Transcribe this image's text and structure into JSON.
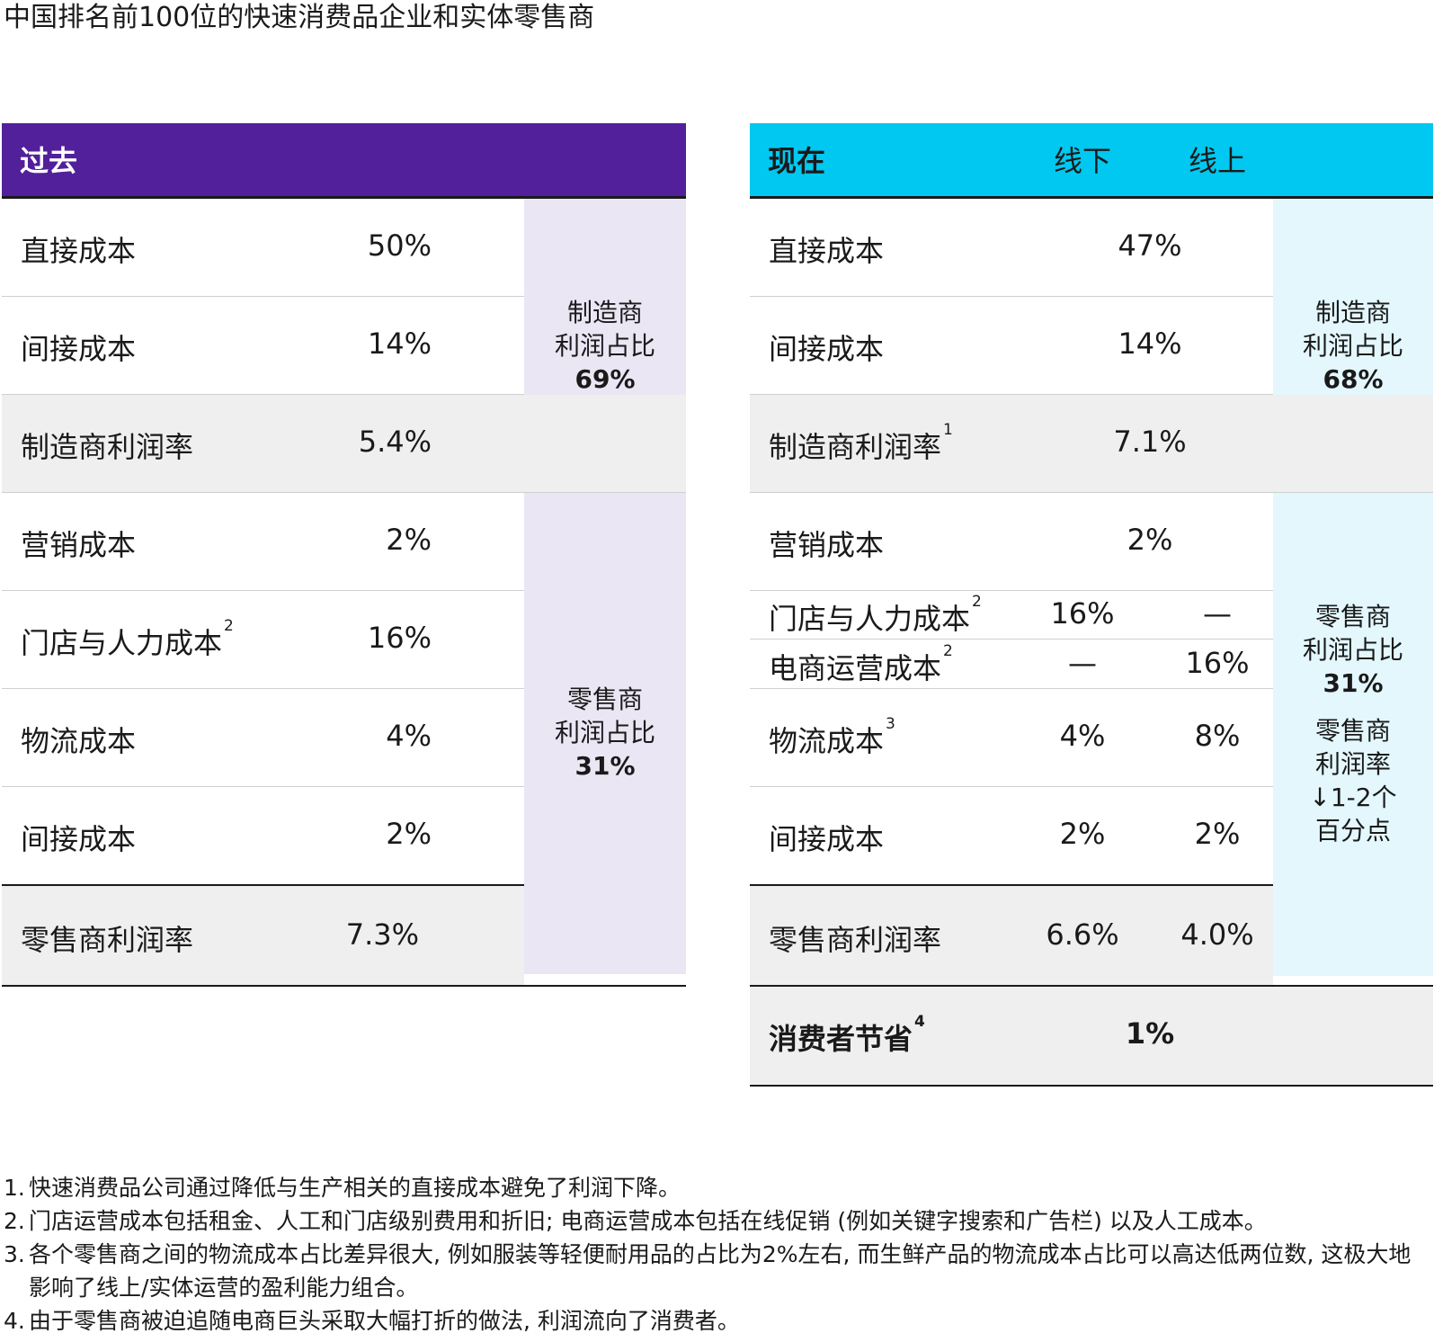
{
  "title": "中国排名前100位的快速消费品企业和实体零售商",
  "left": {
    "header": "过去",
    "rows": [
      {
        "label": "直接成本",
        "sup": "",
        "value": "50%"
      },
      {
        "label": "间接成本",
        "sup": "",
        "value": "14%"
      },
      {
        "label": "制造商利润率",
        "sup": "",
        "value": "5.4%"
      },
      {
        "label": "营销成本",
        "sup": "",
        "value": "2%"
      },
      {
        "label": "门店与人力成本",
        "sup": "2",
        "value": "16%"
      },
      {
        "label": "物流成本",
        "sup": "",
        "value": "4%"
      },
      {
        "label": "间接成本",
        "sup": "",
        "value": "2%"
      },
      {
        "label": "零售商利润率",
        "sup": "",
        "value": "7.3%"
      }
    ],
    "side_manufacturer": {
      "line1": "制造商",
      "line2": "利润占比",
      "pct": "69%"
    },
    "side_retailer": {
      "line1": "零售商",
      "line2": "利润占比",
      "pct": "31%"
    }
  },
  "right": {
    "header": "现在",
    "col_offline": "线下",
    "col_online": "线上",
    "rows": [
      {
        "label": "直接成本",
        "sup": "",
        "value": "47%"
      },
      {
        "label": "间接成本",
        "sup": "",
        "value": "14%"
      },
      {
        "label": "制造商利润率",
        "sup": "1",
        "value": "7.1%"
      },
      {
        "label": "营销成本",
        "sup": "",
        "value": "2%"
      },
      {
        "label": "门店与人力成本",
        "sup": "2",
        "offline": "16%",
        "online": "—"
      },
      {
        "label": "电商运营成本",
        "sup": "2",
        "offline": "—",
        "online": "16%"
      },
      {
        "label": "物流成本",
        "sup": "3",
        "offline": "4%",
        "online": "8%"
      },
      {
        "label": "间接成本",
        "sup": "",
        "offline": "2%",
        "online": "2%"
      },
      {
        "label": "零售商利润率",
        "sup": "",
        "offline": "6.6%",
        "online": "4.0%"
      },
      {
        "label": "消费者节省",
        "sup": "4",
        "value": "1%"
      }
    ],
    "side_manufacturer": {
      "line1": "制造商",
      "line2": "利润占比",
      "pct": "68%"
    },
    "side_retailer": {
      "line1": "零售商",
      "line2": "利润占比",
      "pct": "31%",
      "line3": "零售商",
      "line4": "利润率",
      "line5": "↓1-2个",
      "line6": "百分点"
    }
  },
  "notes": [
    {
      "num": "1.",
      "text": "快速消费品公司通过降低与生产相关的直接成本避免了利润下降。"
    },
    {
      "num": "2.",
      "text": "门店运营成本包括租金、人工和门店级别费用和折旧; 电商运营成本包括在线促销 (例如关键字搜索和广告栏) 以及人工成本。"
    },
    {
      "num": "3.",
      "text": "各个零售商之间的物流成本占比差异很大, 例如服装等轻便耐用品的占比为2%左右, 而生鲜产品的物流成本占比可以高达低两位数, 这极大地影响了线上/实体运营的盈利能力组合。"
    },
    {
      "num": "4.",
      "text": "由于零售商被迫追随电商巨头采取大幅打折的做法, 利润流向了消费者。"
    }
  ]
}
